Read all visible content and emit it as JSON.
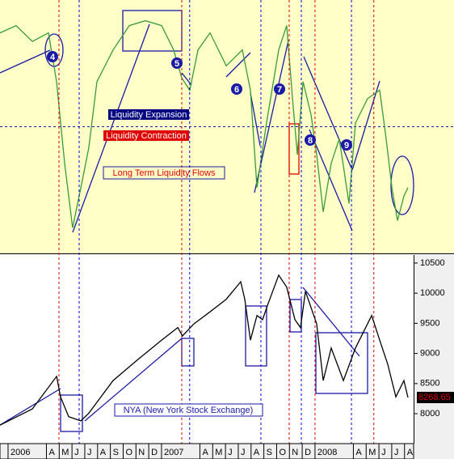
{
  "chart_data": [
    {
      "type": "line",
      "series": [
        {
          "color": "#3a9a3a",
          "values": [
            77,
            83,
            70,
            77,
            37,
            -30,
            -83,
            -50,
            -17,
            37,
            63,
            83,
            87,
            83,
            63,
            40,
            30,
            63,
            77,
            50,
            63,
            30,
            -50,
            3,
            63,
            83,
            23,
            -23,
            37,
            10,
            -23,
            -70,
            -30,
            -10,
            -63,
            3,
            23,
            30,
            -10,
            -50,
            -77,
            -57,
            -50
          ]
        }
      ],
      "x": [
        -0.63,
        0.63,
        1.9,
        3.16,
        3.79,
        4.42,
        5.05,
        5.69,
        6.32,
        6.95,
        8.21,
        9.48,
        10.74,
        12.0,
        12.95,
        13.58,
        14.21,
        14.85,
        15.79,
        17.06,
        18.32,
        18.95,
        19.46,
        20.21,
        21.16,
        21.79,
        22.24,
        22.62,
        23.06,
        23.69,
        24.13,
        24.64,
        25.27,
        25.9,
        26.66,
        27.16,
        28.11,
        29.06,
        29.56,
        30.01,
        30.45,
        30.95,
        31.27
      ],
      "xlim": [
        -0.63,
        31.71
      ],
      "ylim": [
        -104,
        104
      ],
      "threshold": 0,
      "labels": [
        "Liquidity Expansion",
        "Liquidity Contraction",
        "Long Term Liquidity Flows"
      ],
      "markers": [
        "4",
        "5",
        "6",
        "7",
        "8",
        "9"
      ],
      "vlines": [
        {
          "x": 3.98,
          "color": "#e00000"
        },
        {
          "x": 5.56,
          "color": "#0000e0"
        },
        {
          "x": 13.58,
          "color": "#e00000"
        },
        {
          "x": 14.2,
          "color": "#0000e0"
        },
        {
          "x": 19.77,
          "color": "#0000e0"
        },
        {
          "x": 21.98,
          "color": "#e00000"
        },
        {
          "x": 22.93,
          "color": "#0000e0"
        },
        {
          "x": 24.0,
          "color": "#e00000"
        },
        {
          "x": 26.85,
          "color": "#0000e0"
        },
        {
          "x": 28.6,
          "color": "#e00000"
        }
      ]
    },
    {
      "type": "line",
      "series": [
        {
          "name": "NYA (New York Stock Exchange)",
          "color": "#000000",
          "values": [
            7810,
            8080,
            8620,
            8280,
            7950,
            7880,
            8010,
            8550,
            8890,
            9220,
            9430,
            9290,
            9490,
            9690,
            9900,
            10190,
            9900,
            9220,
            9630,
            9560,
            9830,
            10300,
            10100,
            9560,
            9430,
            10030,
            9490,
            8550,
            9090,
            8550,
            9090,
            9360,
            9630,
            9220,
            8820,
            8280,
            8550,
            8268.65
          ]
        }
      ],
      "x": [
        -0.63,
        1.9,
        3.8,
        4.1,
        4.74,
        5.69,
        6.32,
        8.21,
        10.1,
        12.0,
        13.27,
        13.64,
        14.53,
        15.79,
        17.06,
        18.19,
        18.51,
        18.95,
        19.46,
        19.9,
        20.34,
        21.16,
        21.79,
        22.43,
        22.87,
        23.25,
        24.13,
        24.64,
        25.27,
        26.22,
        27.16,
        27.8,
        28.43,
        29.06,
        29.69,
        30.32,
        30.95,
        31.27
      ],
      "xlim": [
        -0.63,
        31.71
      ],
      "ylim": [
        7503,
        10634
      ],
      "yticks": [
        8000,
        8500,
        9000,
        9500,
        10000,
        10500
      ],
      "xticks": [
        {
          "value": 0,
          "label": "2006"
        },
        {
          "value": 3,
          "label": "A"
        },
        {
          "value": 4,
          "label": "M"
        },
        {
          "value": 5,
          "label": "J"
        },
        {
          "value": 6,
          "label": "J"
        },
        {
          "value": 7,
          "label": "A"
        },
        {
          "value": 8,
          "label": "S"
        },
        {
          "value": 9,
          "label": "O"
        },
        {
          "value": 10,
          "label": "N"
        },
        {
          "value": 11,
          "label": "D"
        },
        {
          "value": 12,
          "label": "2007"
        },
        {
          "value": 15,
          "label": "A"
        },
        {
          "value": 16,
          "label": "M"
        },
        {
          "value": 17,
          "label": "J"
        },
        {
          "value": 18,
          "label": "J"
        },
        {
          "value": 19,
          "label": "A"
        },
        {
          "value": 20,
          "label": "S"
        },
        {
          "value": 21,
          "label": "O"
        },
        {
          "value": 22,
          "label": "N"
        },
        {
          "value": 23,
          "label": "D"
        },
        {
          "value": 24,
          "label": "2008"
        },
        {
          "value": 27,
          "label": "A"
        },
        {
          "value": 28,
          "label": "M"
        },
        {
          "value": 29,
          "label": "J"
        },
        {
          "value": 30,
          "label": "J"
        },
        {
          "value": 31,
          "label": "A"
        }
      ]
    }
  ]
}
